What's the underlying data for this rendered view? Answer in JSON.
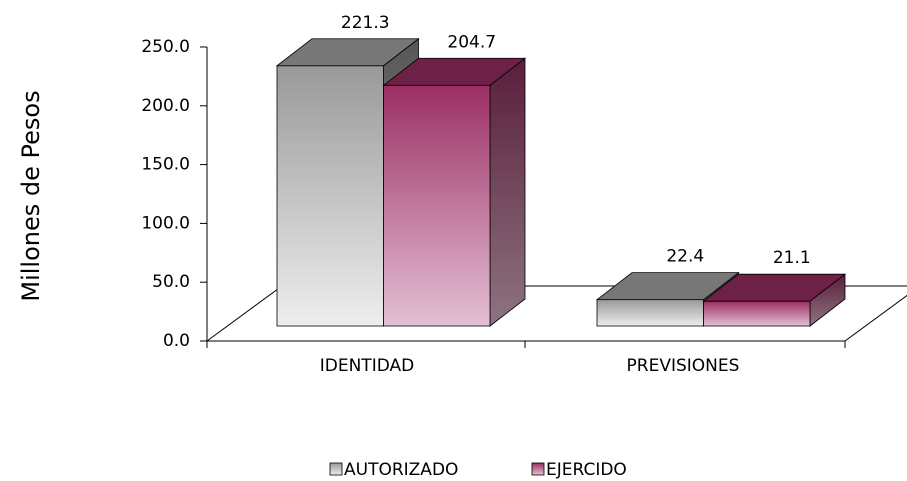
{
  "chart_data": {
    "type": "bar3d",
    "y_label": "Millones de Pesos",
    "categories": [
      "IDENTIDAD",
      "PREVISIONES"
    ],
    "series": [
      {
        "name": "AUTORIZADO",
        "color": "#999999",
        "values": [
          221.3,
          22.4
        ]
      },
      {
        "name": "EJERCIDO",
        "color": "#9b2f63",
        "values": [
          204.7,
          21.1
        ]
      }
    ],
    "ylim": [
      0,
      250
    ],
    "yticks": [
      {
        "value": 0,
        "label": "0.0"
      },
      {
        "value": 50,
        "label": "50.0"
      },
      {
        "value": 100,
        "label": "100.0"
      },
      {
        "value": 150,
        "label": "150.0"
      },
      {
        "value": 200,
        "label": "200.0"
      },
      {
        "value": 250,
        "label": "250.0"
      }
    ],
    "legend": "bottom"
  }
}
